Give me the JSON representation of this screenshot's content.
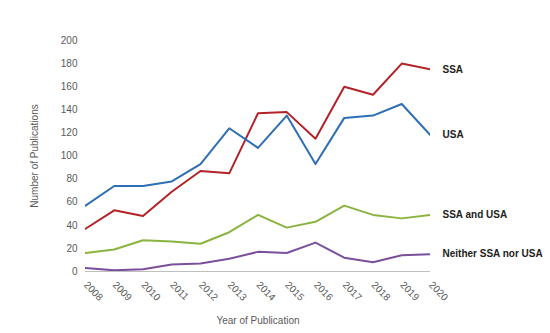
{
  "chart_data": {
    "type": "line",
    "x_label": "Year of Publication",
    "y_label": "Number of Publications",
    "x": [
      2008,
      2009,
      2010,
      2011,
      2012,
      2013,
      2014,
      2015,
      2016,
      2017,
      2018,
      2019,
      2020
    ],
    "xlim": [
      2008,
      2020
    ],
    "xticks": [
      2008,
      2009,
      2010,
      2011,
      2012,
      2013,
      2014,
      2015,
      2016,
      2017,
      2018,
      2019,
      2020
    ],
    "ylim": [
      0,
      200
    ],
    "yticks": [
      0,
      20,
      40,
      60,
      80,
      100,
      120,
      140,
      160,
      180,
      200
    ],
    "grid": false,
    "series": [
      {
        "name": "SSA",
        "color": "#b22229",
        "values": [
          37,
          53,
          48,
          69,
          87,
          85,
          137,
          138,
          115,
          160,
          153,
          180,
          175
        ]
      },
      {
        "name": "USA",
        "color": "#2e6eb5",
        "values": [
          57,
          74,
          74,
          78,
          93,
          124,
          107,
          135,
          93,
          133,
          135,
          145,
          118
        ]
      },
      {
        "name": "SSA and USA",
        "color": "#8ab33f",
        "values": [
          16,
          19,
          27,
          26,
          24,
          34,
          49,
          38,
          43,
          57,
          49,
          46,
          49
        ]
      },
      {
        "name": "Neither SSA nor USA",
        "color": "#7a4f9c",
        "values": [
          3,
          1,
          2,
          6,
          7,
          11,
          17,
          16,
          25,
          12,
          8,
          14,
          15
        ]
      }
    ]
  }
}
